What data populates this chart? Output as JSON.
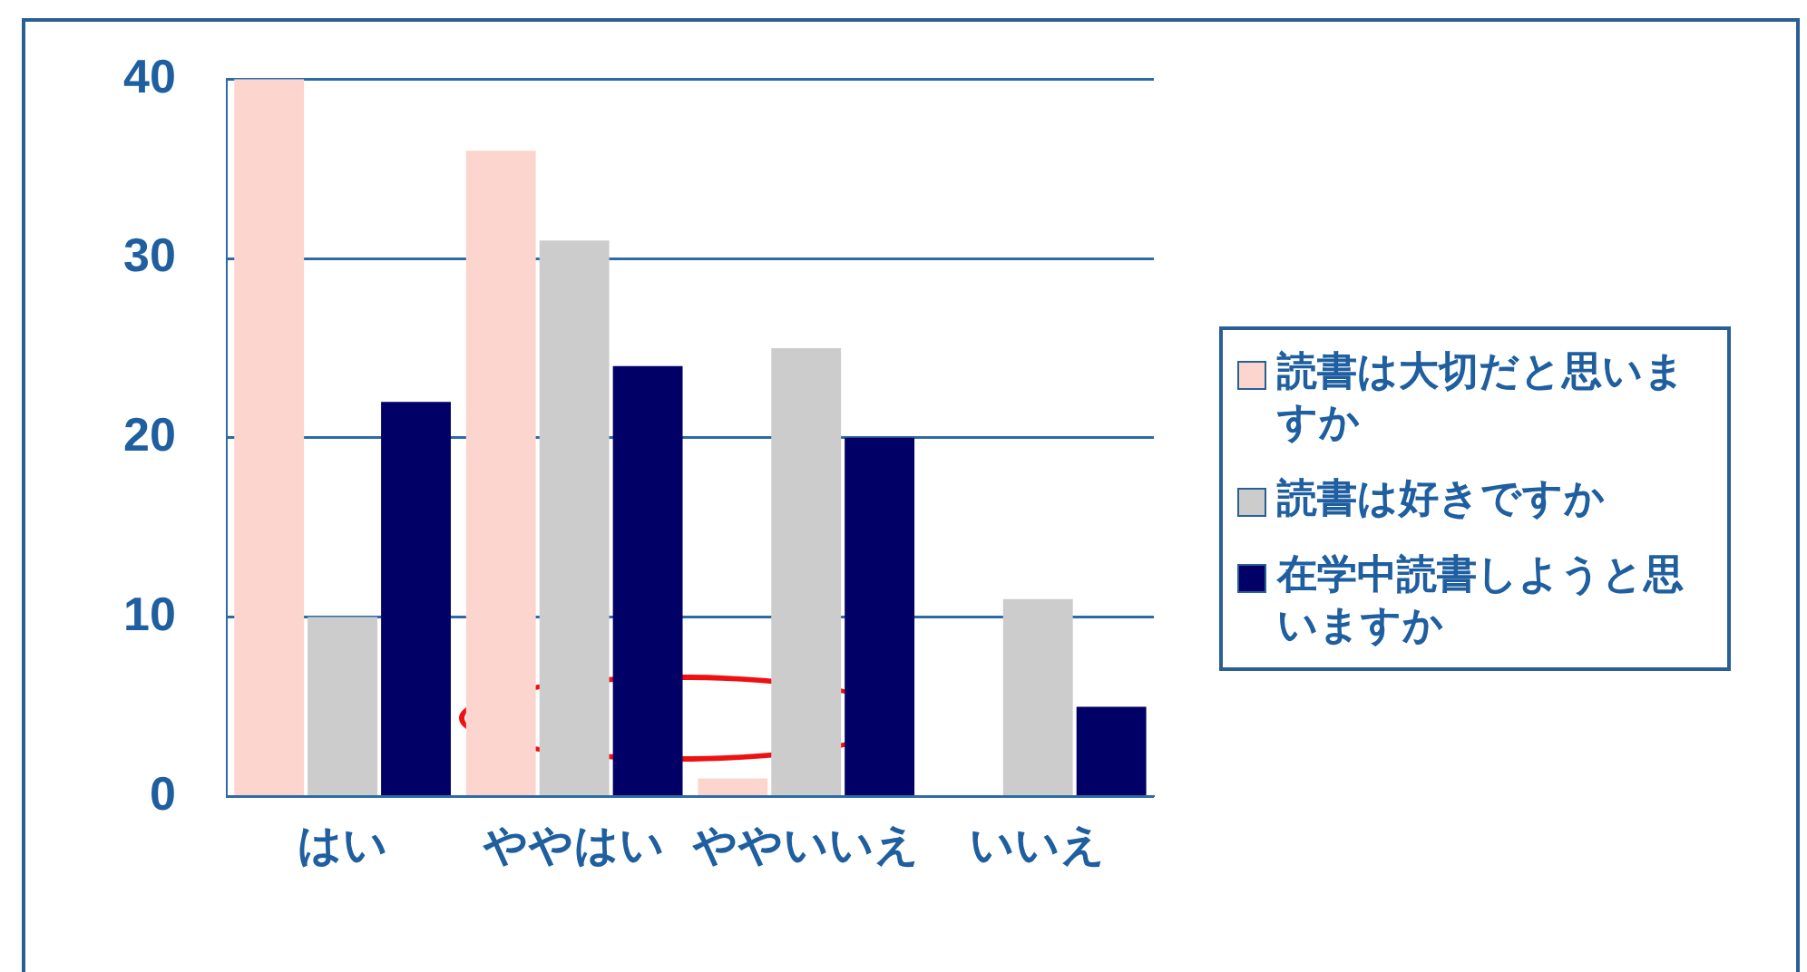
{
  "chart_data": {
    "type": "bar",
    "categories": [
      "はい",
      "ややはい",
      "ややいいえ",
      "いいえ"
    ],
    "series": [
      {
        "name": "読書は大切だと思いますか",
        "color": "#fcd5ce",
        "values": [
          40,
          36,
          1,
          0
        ]
      },
      {
        "name": "読書は好きですか",
        "color": "#cccccc",
        "values": [
          10,
          31,
          25,
          11
        ]
      },
      {
        "name": "在学中読書しようと思いますか",
        "color": "#000066",
        "values": [
          22,
          24,
          20,
          5
        ]
      }
    ],
    "ylim": [
      0,
      40
    ],
    "yticks": [
      0,
      10,
      20,
      30,
      40
    ],
    "grid": "y",
    "legend": "right"
  }
}
